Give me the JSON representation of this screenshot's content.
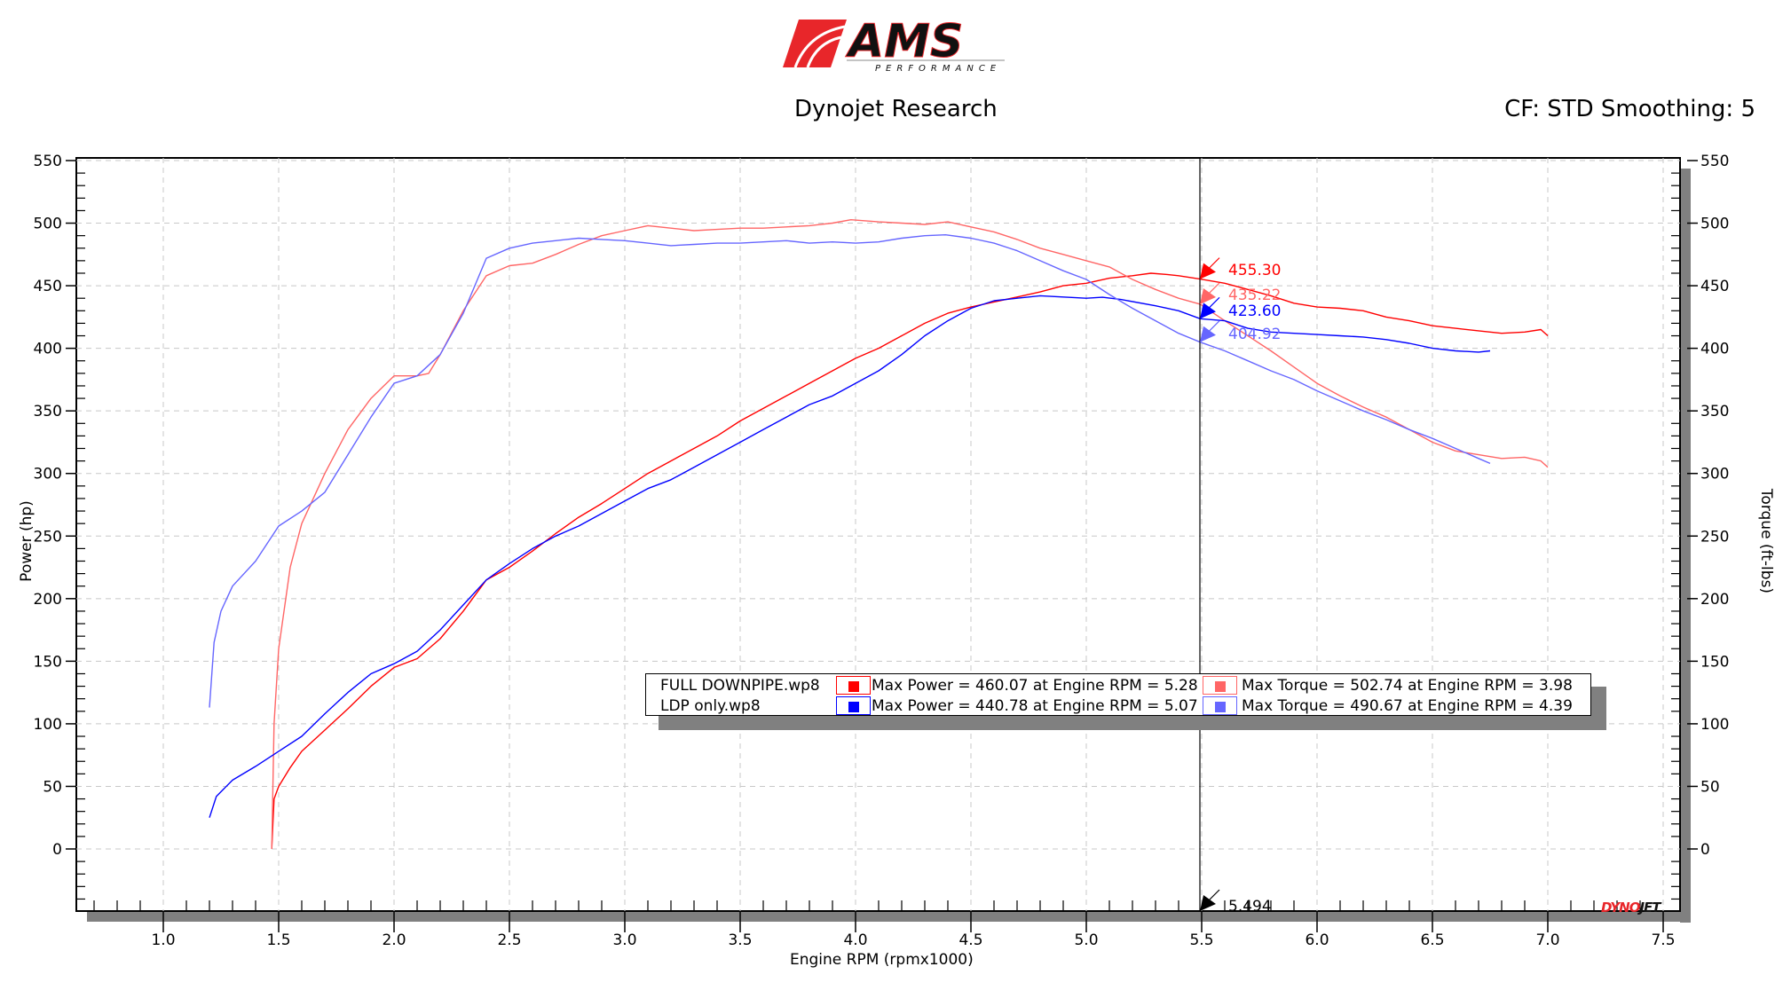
{
  "header": {
    "logo_text": "AMS",
    "logo_subtext": "PERFORMANCE",
    "title": "Dynojet Research",
    "right_info": "CF: STD Smoothing: 5"
  },
  "colors": {
    "full_power": "#ff0000",
    "full_torque": "#ff6666",
    "ldp_power": "#0000ff",
    "ldp_torque": "#6666ff",
    "grid": "#c8c8c8",
    "shadow": "#808080",
    "logo_red": "#e8262a"
  },
  "axes": {
    "x_title": "Engine RPM (rpmx1000)",
    "y_left_title": "Power (hp)",
    "y_right_title": "Torque (ft-lbs)",
    "x_ticks": [
      "1.0",
      "1.5",
      "2.0",
      "2.5",
      "3.0",
      "3.5",
      "4.0",
      "4.5",
      "5.0",
      "5.5",
      "6.0",
      "6.5",
      "7.0",
      "7.5"
    ],
    "y_ticks": [
      "550",
      "500",
      "450",
      "400",
      "350",
      "300",
      "250",
      "200",
      "150",
      "100",
      "50",
      "0"
    ]
  },
  "cursor": {
    "rpm": "5.494",
    "readouts": [
      {
        "value": "455.30",
        "series": "full_power"
      },
      {
        "value": "435.22",
        "series": "full_torque"
      },
      {
        "value": "423.60",
        "series": "ldp_power"
      },
      {
        "value": "404.92",
        "series": "ldp_torque"
      }
    ]
  },
  "legend": {
    "rows": [
      {
        "name": "FULL DOWNPIPE.wp8",
        "power": "Max Power = 460.07 at Engine RPM = 5.28",
        "torque": "Max Torque = 502.74 at Engine RPM = 3.98"
      },
      {
        "name": "LDP only.wp8",
        "power": "Max Power = 440.78 at Engine RPM = 5.07",
        "torque": "Max Torque = 490.67 at Engine RPM = 4.39"
      }
    ]
  },
  "watermark": {
    "dyno": "DYNO",
    "jet": "JET"
  },
  "chart_data": {
    "type": "line",
    "title": "Dynojet Research",
    "subtitle": "CF: STD Smoothing: 5",
    "xlabel": "Engine RPM (rpmx1000)",
    "ylabel": "Power (hp)",
    "ylabel_right": "Torque (ft-lbs)",
    "xlim": [
      0.7,
      7.6
    ],
    "ylim": [
      -50,
      550
    ],
    "grid": true,
    "legend_position": "lower-center",
    "series": [
      {
        "name": "FULL DOWNPIPE.wp8 Power (hp)",
        "color": "#ff0000",
        "x": [
          1.47,
          1.48,
          1.5,
          1.55,
          1.6,
          1.7,
          1.8,
          1.9,
          2.0,
          2.1,
          2.2,
          2.3,
          2.4,
          2.5,
          2.6,
          2.7,
          2.8,
          2.9,
          3.0,
          3.1,
          3.2,
          3.3,
          3.4,
          3.5,
          3.6,
          3.7,
          3.8,
          3.9,
          4.0,
          4.1,
          4.2,
          4.3,
          4.4,
          4.5,
          4.6,
          4.7,
          4.8,
          4.9,
          5.0,
          5.1,
          5.2,
          5.28,
          5.35,
          5.4,
          5.494,
          5.6,
          5.7,
          5.8,
          5.9,
          6.0,
          6.1,
          6.2,
          6.3,
          6.4,
          6.5,
          6.6,
          6.7,
          6.8,
          6.9,
          6.97,
          7.0
        ],
        "y": [
          0,
          40,
          50,
          65,
          78,
          95,
          112,
          130,
          145,
          152,
          168,
          190,
          215,
          225,
          238,
          252,
          265,
          276,
          288,
          300,
          310,
          320,
          330,
          342,
          352,
          362,
          372,
          382,
          392,
          400,
          410,
          420,
          428,
          433,
          437,
          441,
          445,
          450,
          452,
          456,
          458,
          460,
          459,
          458,
          455.3,
          452,
          447,
          442,
          436,
          433,
          432,
          430,
          425,
          422,
          418,
          416,
          414,
          412,
          413,
          415,
          410
        ]
      },
      {
        "name": "FULL DOWNPIPE.wp8 Torque (ft-lbs)",
        "color": "#ff6666",
        "x": [
          1.47,
          1.48,
          1.5,
          1.55,
          1.6,
          1.7,
          1.8,
          1.9,
          2.0,
          2.1,
          2.15,
          2.2,
          2.3,
          2.4,
          2.5,
          2.6,
          2.7,
          2.8,
          2.9,
          3.0,
          3.1,
          3.2,
          3.3,
          3.4,
          3.5,
          3.6,
          3.7,
          3.8,
          3.9,
          3.98,
          4.1,
          4.2,
          4.3,
          4.4,
          4.5,
          4.6,
          4.7,
          4.8,
          4.9,
          5.0,
          5.1,
          5.2,
          5.3,
          5.4,
          5.494,
          5.6,
          5.7,
          5.8,
          5.9,
          6.0,
          6.1,
          6.2,
          6.3,
          6.4,
          6.5,
          6.6,
          6.7,
          6.8,
          6.9,
          6.97,
          7.0
        ],
        "y": [
          0,
          100,
          160,
          225,
          260,
          300,
          335,
          360,
          378,
          378,
          380,
          395,
          430,
          458,
          466,
          468,
          475,
          483,
          490,
          494,
          498,
          496,
          494,
          495,
          496,
          496,
          497,
          498,
          500,
          502.74,
          501,
          500,
          499,
          501,
          497,
          493,
          487,
          480,
          475,
          470,
          465,
          455,
          447,
          440,
          435.22,
          422,
          410,
          398,
          385,
          372,
          362,
          353,
          345,
          335,
          325,
          318,
          315,
          312,
          313,
          310,
          305
        ]
      },
      {
        "name": "LDP only.wp8 Power (hp)",
        "color": "#0000ff",
        "x": [
          1.2,
          1.23,
          1.3,
          1.4,
          1.5,
          1.6,
          1.7,
          1.8,
          1.9,
          2.0,
          2.1,
          2.2,
          2.3,
          2.4,
          2.5,
          2.6,
          2.7,
          2.8,
          2.9,
          3.0,
          3.1,
          3.2,
          3.3,
          3.4,
          3.5,
          3.6,
          3.7,
          3.8,
          3.9,
          4.0,
          4.1,
          4.2,
          4.3,
          4.4,
          4.5,
          4.6,
          4.7,
          4.8,
          4.9,
          5.0,
          5.07,
          5.15,
          5.3,
          5.4,
          5.494,
          5.6,
          5.7,
          5.8,
          5.9,
          6.0,
          6.1,
          6.2,
          6.3,
          6.4,
          6.5,
          6.6,
          6.7,
          6.75
        ],
        "y": [
          25,
          42,
          55,
          66,
          78,
          90,
          108,
          125,
          140,
          148,
          158,
          175,
          195,
          215,
          228,
          240,
          250,
          258,
          268,
          278,
          288,
          295,
          305,
          315,
          325,
          335,
          345,
          355,
          362,
          372,
          382,
          395,
          410,
          422,
          432,
          438,
          440,
          442,
          441,
          440,
          440.78,
          439,
          434,
          430,
          423.6,
          422,
          416,
          413,
          412,
          411,
          410,
          409,
          407,
          404,
          400,
          398,
          397,
          398
        ]
      },
      {
        "name": "LDP only.wp8 Torque (ft-lbs)",
        "color": "#6666ff",
        "x": [
          1.2,
          1.22,
          1.25,
          1.3,
          1.4,
          1.5,
          1.6,
          1.7,
          1.8,
          1.9,
          2.0,
          2.1,
          2.2,
          2.3,
          2.4,
          2.5,
          2.6,
          2.7,
          2.8,
          2.9,
          3.0,
          3.1,
          3.2,
          3.3,
          3.4,
          3.5,
          3.6,
          3.7,
          3.8,
          3.9,
          4.0,
          4.1,
          4.2,
          4.3,
          4.39,
          4.5,
          4.6,
          4.7,
          4.8,
          4.9,
          5.0,
          5.1,
          5.2,
          5.3,
          5.4,
          5.494,
          5.6,
          5.7,
          5.8,
          5.9,
          6.0,
          6.1,
          6.2,
          6.3,
          6.4,
          6.5,
          6.6,
          6.7,
          6.75
        ],
        "y": [
          113,
          165,
          190,
          210,
          230,
          258,
          270,
          285,
          315,
          345,
          372,
          378,
          395,
          428,
          472,
          480,
          484,
          486,
          488,
          487,
          486,
          484,
          482,
          483,
          484,
          484,
          485,
          486,
          484,
          485,
          484,
          485,
          488,
          490,
          490.67,
          488,
          484,
          478,
          470,
          462,
          455,
          443,
          432,
          422,
          412,
          404.92,
          398,
          390,
          382,
          375,
          366,
          358,
          350,
          343,
          335,
          328,
          320,
          312,
          308
        ]
      }
    ]
  }
}
